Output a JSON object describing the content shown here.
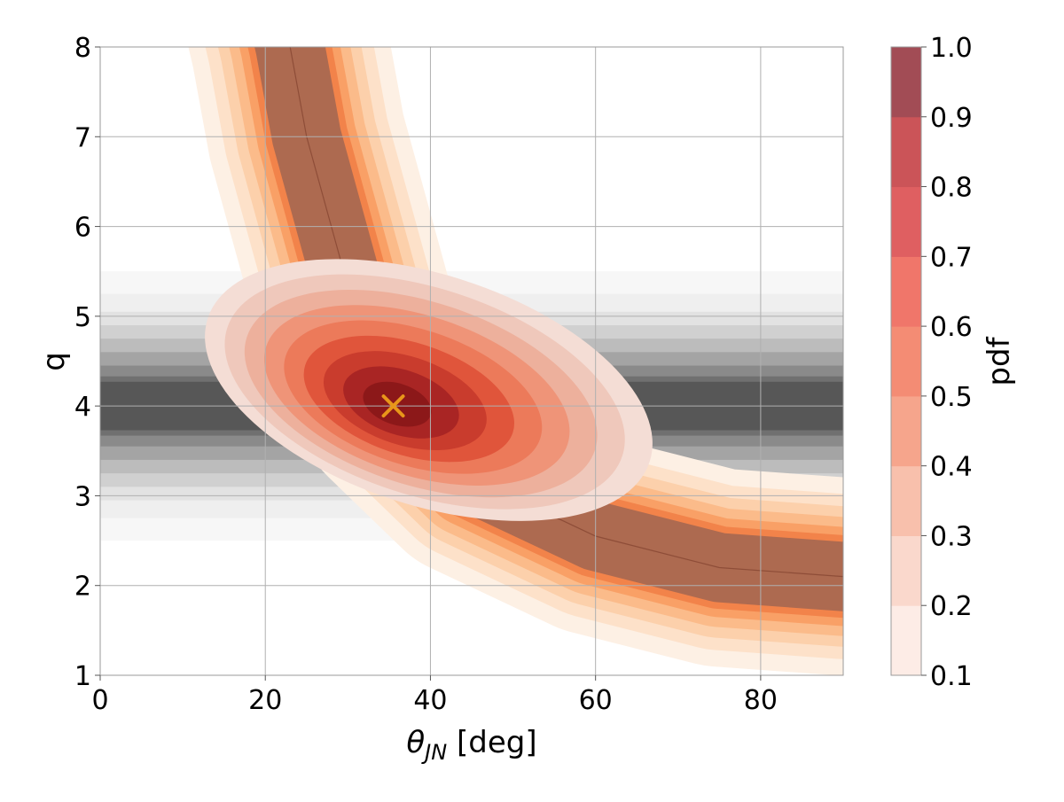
{
  "chart_data": {
    "type": "contour",
    "title": "",
    "xlabel": "θ",
    "xlabel_subscript": "JN",
    "xlabel_unit": " [deg]",
    "ylabel": "q",
    "xlim": [
      0,
      90
    ],
    "ylim": [
      1,
      8
    ],
    "grid": true,
    "x_ticks": [
      {
        "value": 0,
        "label": "0"
      },
      {
        "value": 20,
        "label": "20"
      },
      {
        "value": 40,
        "label": "40"
      },
      {
        "value": 60,
        "label": "60"
      },
      {
        "value": 80,
        "label": "80"
      }
    ],
    "y_ticks": [
      {
        "value": 1,
        "label": "1"
      },
      {
        "value": 2,
        "label": "2"
      },
      {
        "value": 3,
        "label": "3"
      },
      {
        "value": 4,
        "label": "4"
      },
      {
        "value": 5,
        "label": "5"
      },
      {
        "value": 6,
        "label": "6"
      },
      {
        "value": 7,
        "label": "7"
      },
      {
        "value": 8,
        "label": "8"
      }
    ],
    "background_band": {
      "description": "grey horizontal band, constraint on q",
      "center_q": 4.0,
      "levels": [
        {
          "halfwidth": 1.5,
          "color": "#f7f7f7"
        },
        {
          "halfwidth": 1.25,
          "color": "#efefef"
        },
        {
          "halfwidth": 1.05,
          "color": "#e2e2e2"
        },
        {
          "halfwidth": 0.9,
          "color": "#d0d0d0"
        },
        {
          "halfwidth": 0.75,
          "color": "#bcbcbc"
        },
        {
          "halfwidth": 0.6,
          "color": "#a4a4a4"
        },
        {
          "halfwidth": 0.45,
          "color": "#8a8a8a"
        },
        {
          "halfwidth": 0.33,
          "color": "#707070"
        },
        {
          "halfwidth": 0.27,
          "color": "#575757"
        }
      ]
    },
    "degeneracy_curve": {
      "description": "orange contour ridge along q * sin(theta) ~ const",
      "ridge_points": [
        {
          "theta": 23,
          "q": 8.0
        },
        {
          "theta": 25,
          "q": 7.0
        },
        {
          "theta": 28,
          "q": 6.0
        },
        {
          "theta": 31,
          "q": 5.0
        },
        {
          "theta": 36,
          "q": 4.0
        },
        {
          "theta": 45,
          "q": 3.2
        },
        {
          "theta": 60,
          "q": 2.55
        },
        {
          "theta": 75,
          "q": 2.2
        },
        {
          "theta": 90,
          "q": 2.1
        }
      ],
      "levels": [
        {
          "halfwidth": 12.0,
          "color": "#fdf0e4"
        },
        {
          "halfwidth": 10.0,
          "color": "#fde1c9"
        },
        {
          "halfwidth": 8.5,
          "color": "#fcd0ab"
        },
        {
          "halfwidth": 7.2,
          "color": "#fbbb8a"
        },
        {
          "halfwidth": 6.0,
          "color": "#f9a066"
        },
        {
          "halfwidth": 5.0,
          "color": "#f2834a"
        },
        {
          "halfwidth": 4.2,
          "color": "#ad6a50"
        }
      ]
    },
    "posterior_blob": {
      "description": "red posterior pdf contours centred near the injection",
      "peak": {
        "theta": 35.5,
        "q": 4.0
      },
      "levels": [
        {
          "pdf": 0.1,
          "color": "#f4ddd5"
        },
        {
          "pdf": 0.2,
          "color": "#efc8bb"
        },
        {
          "pdf": 0.3,
          "color": "#edb09c"
        },
        {
          "pdf": 0.4,
          "color": "#ef9478"
        },
        {
          "pdf": 0.5,
          "color": "#ec7a5a"
        },
        {
          "pdf": 0.6,
          "color": "#e0553b"
        },
        {
          "pdf": 0.7,
          "color": "#c93c2d"
        },
        {
          "pdf": 0.8,
          "color": "#a92524"
        },
        {
          "pdf": 0.9,
          "color": "#8c1819"
        }
      ]
    },
    "injection_marker": {
      "theta": 35.5,
      "q": 4.0,
      "symbol": "x",
      "color": "#e8961a"
    },
    "colorbar": {
      "label": "pdf",
      "range": [
        0.1,
        1.0
      ],
      "ticks": [
        "0.1",
        "0.2",
        "0.3",
        "0.4",
        "0.5",
        "0.6",
        "0.7",
        "0.8",
        "0.9",
        "1.0"
      ],
      "colors": [
        "#fdece6",
        "#fad8cc",
        "#f8c0ac",
        "#f6a58c",
        "#f48c74",
        "#f0766a",
        "#df5f61",
        "#cb5458",
        "#a24c55"
      ]
    }
  }
}
